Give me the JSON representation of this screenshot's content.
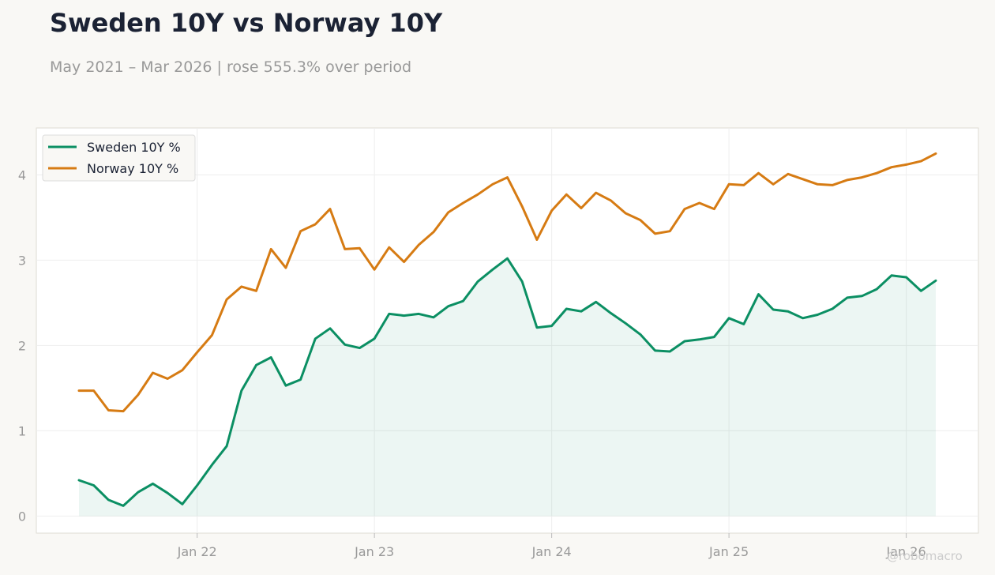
{
  "chart_data": {
    "type": "line",
    "title": "Sweden 10Y vs Norway 10Y",
    "subtitle": "May 2021 – Mar 2026 | rose 555.3% over period",
    "xlabel": "",
    "ylabel": "",
    "ylim": [
      -0.2,
      4.55
    ],
    "y_ticks": [
      0,
      1,
      2,
      3,
      4
    ],
    "x_tick_labels": [
      "Jan 22",
      "Jan 23",
      "Jan 24",
      "Jan 25",
      "Jan 26"
    ],
    "grid": true,
    "legend_position": "top-left",
    "dates": [
      "2021-05",
      "2021-06",
      "2021-07",
      "2021-08",
      "2021-09",
      "2021-10",
      "2021-11",
      "2021-12",
      "2022-01",
      "2022-02",
      "2022-03",
      "2022-04",
      "2022-05",
      "2022-06",
      "2022-07",
      "2022-08",
      "2022-09",
      "2022-10",
      "2022-11",
      "2022-12",
      "2023-01",
      "2023-02",
      "2023-03",
      "2023-04",
      "2023-05",
      "2023-06",
      "2023-07",
      "2023-08",
      "2023-09",
      "2023-10",
      "2023-11",
      "2023-12",
      "2024-01",
      "2024-02",
      "2024-03",
      "2024-04",
      "2024-05",
      "2024-06",
      "2024-07",
      "2024-08",
      "2024-09",
      "2024-10",
      "2024-11",
      "2024-12",
      "2025-01",
      "2025-02",
      "2025-03",
      "2025-04",
      "2025-05",
      "2025-06",
      "2025-07",
      "2025-08",
      "2025-09",
      "2025-10",
      "2025-11",
      "2025-12",
      "2026-01",
      "2026-02",
      "2026-03"
    ],
    "series": [
      {
        "name": "Sweden 10Y %",
        "color": "#0b8f63",
        "fill": true,
        "values": [
          0.42,
          0.36,
          0.19,
          0.12,
          0.28,
          0.38,
          0.27,
          0.14,
          0.36,
          0.6,
          0.82,
          1.47,
          1.77,
          1.86,
          1.53,
          1.6,
          2.08,
          2.2,
          2.01,
          1.97,
          2.08,
          2.37,
          2.35,
          2.37,
          2.33,
          2.46,
          2.52,
          2.75,
          2.89,
          3.02,
          2.75,
          2.21,
          2.23,
          2.43,
          2.4,
          2.51,
          2.38,
          2.26,
          2.13,
          1.94,
          1.93,
          2.05,
          2.07,
          2.1,
          2.32,
          2.25,
          2.6,
          2.42,
          2.4,
          2.32,
          2.36,
          2.43,
          2.56,
          2.58,
          2.66,
          2.82,
          2.8,
          2.64,
          2.76
        ]
      },
      {
        "name": "Norway 10Y %",
        "color": "#d67b13",
        "fill": false,
        "values": [
          1.47,
          1.47,
          1.24,
          1.23,
          1.42,
          1.68,
          1.61,
          1.71,
          1.92,
          2.12,
          2.54,
          2.69,
          2.64,
          3.13,
          2.91,
          3.34,
          3.42,
          3.6,
          3.13,
          3.14,
          2.89,
          3.15,
          2.98,
          3.18,
          3.33,
          3.56,
          3.67,
          3.77,
          3.89,
          3.97,
          3.63,
          3.24,
          3.58,
          3.77,
          3.61,
          3.79,
          3.7,
          3.55,
          3.47,
          3.31,
          3.34,
          3.6,
          3.67,
          3.6,
          3.89,
          3.88,
          4.02,
          3.89,
          4.01,
          3.95,
          3.89,
          3.88,
          3.94,
          3.97,
          4.02,
          4.09,
          4.12,
          4.16,
          4.25
        ]
      }
    ]
  },
  "watermark": "@robomacro"
}
